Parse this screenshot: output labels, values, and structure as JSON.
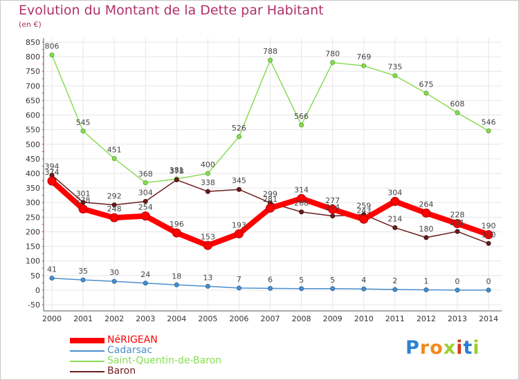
{
  "chart_data": {
    "type": "line",
    "title": "Evolution du Montant de la Dette par Habitant",
    "subtitle": "(en €)",
    "x": [
      "2000",
      "2001",
      "2002",
      "2003",
      "2004",
      "2005",
      "2006",
      "2007",
      "2008",
      "2009",
      "2010",
      "2011",
      "2012",
      "2013",
      "2014"
    ],
    "ylim": [
      -50,
      850
    ],
    "yticks": [
      -50,
      0,
      50,
      100,
      150,
      200,
      250,
      300,
      350,
      400,
      450,
      500,
      550,
      600,
      650,
      700,
      750,
      800,
      850
    ],
    "grid": true,
    "legend_position": "bottom-left",
    "series": [
      {
        "name": "NéRIGEAN",
        "color": "#ff0000",
        "values": [
          374,
          278,
          248,
          254,
          196,
          153,
          193,
          281,
          314,
          277,
          243,
          304,
          264,
          228,
          190
        ],
        "labels": [
          "374",
          "278",
          "248",
          "254",
          "196",
          "153",
          "193",
          "281",
          "314",
          "277",
          "243",
          "304",
          "264",
          "228",
          "190"
        ]
      },
      {
        "name": "Cadarsac",
        "color": "#4a8fcc",
        "values": [
          41,
          35,
          30,
          24,
          18,
          13,
          7,
          6,
          5,
          5,
          4,
          2,
          1,
          0,
          0
        ],
        "labels": [
          "41",
          "35",
          "30",
          "24",
          "18",
          "13",
          "7",
          "6",
          "5",
          "5",
          "4",
          "2",
          "1",
          "0",
          "0"
        ]
      },
      {
        "name": "Saint-Quentin-de-Baron",
        "color": "#88dd55",
        "values": [
          806,
          545,
          451,
          368,
          381,
          400,
          526,
          788,
          566,
          780,
          769,
          735,
          675,
          608,
          546
        ],
        "labels": [
          "806",
          "545",
          "451",
          "368",
          "381",
          "400",
          "526",
          "788",
          "566",
          "780",
          "769",
          "735",
          "675",
          "608",
          "546"
        ]
      },
      {
        "name": "Baron",
        "color": "#6b1c1c",
        "values": [
          394,
          301,
          292,
          304,
          378,
          338,
          345,
          299,
          268,
          254,
          259,
          214,
          180,
          201,
          160
        ],
        "labels": [
          "394",
          "301",
          "292",
          "304",
          "378",
          "338",
          "345",
          "299",
          "268",
          "254",
          "259",
          "214",
          "180",
          "201",
          "160"
        ]
      }
    ]
  },
  "brand": {
    "text": "Proxiti"
  }
}
